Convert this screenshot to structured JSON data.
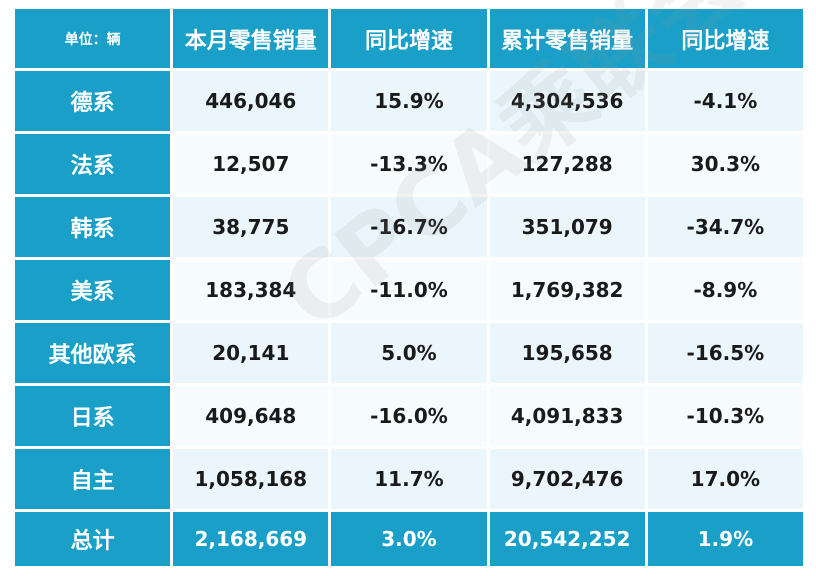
{
  "chart_data": {
    "type": "table",
    "header": {
      "unit": "单位：辆",
      "columns": [
        "本月零售销量",
        "同比增速",
        "累计零售销量",
        "同比增速"
      ]
    },
    "rows": [
      {
        "label": "德系",
        "cells": [
          "446,046",
          "15.9%",
          "4,304,536",
          "-4.1%"
        ]
      },
      {
        "label": "法系",
        "cells": [
          "12,507",
          "-13.3%",
          "127,288",
          "30.3%"
        ]
      },
      {
        "label": "韩系",
        "cells": [
          "38,775",
          "-16.7%",
          "351,079",
          "-34.7%"
        ]
      },
      {
        "label": "美系",
        "cells": [
          "183,384",
          "-11.0%",
          "1,769,382",
          "-8.9%"
        ]
      },
      {
        "label": "其他欧系",
        "cells": [
          "20,141",
          "5.0%",
          "195,658",
          "-16.5%"
        ]
      },
      {
        "label": "日系",
        "cells": [
          "409,648",
          "-16.0%",
          "4,091,833",
          "-10.3%"
        ]
      },
      {
        "label": "自主",
        "cells": [
          "1,058,168",
          "11.7%",
          "9,702,476",
          "17.0%"
        ]
      }
    ],
    "total": {
      "label": "总计",
      "cells": [
        "2,168,669",
        "3.0%",
        "20,542,252",
        "1.9%"
      ]
    }
  },
  "watermark": "CPCA乘联会",
  "colors": {
    "header_bg": "#1aa0c8",
    "row_bg_odd": "#eaf6fb",
    "row_bg_even": "#f6fbfd",
    "header_text": "#ffffff",
    "cell_text": "#1a1a1a"
  }
}
